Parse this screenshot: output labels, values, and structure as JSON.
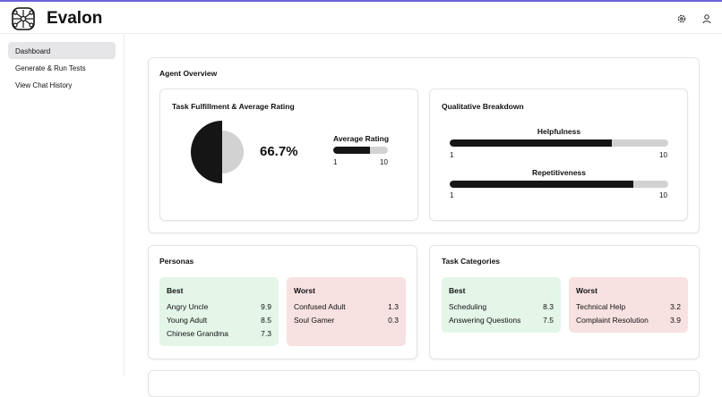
{
  "app": {
    "name": "Evalon",
    "icons": [
      "gear-icon",
      "user-icon"
    ]
  },
  "sidebar": {
    "items": [
      {
        "label": "Dashboard",
        "active": true
      },
      {
        "label": "Generate & Run Tests"
      },
      {
        "label": "View Chat History"
      }
    ]
  },
  "overview": {
    "title": "Agent Overview",
    "task": {
      "title": "Task Fulfillment & Average Rating",
      "percent": "66.7%",
      "rating_label": "Average Rating",
      "rating_fraction": 0.68,
      "min": "1",
      "max": "10"
    },
    "qual": {
      "title": "Qualitative Breakdown",
      "items": [
        {
          "label": "Helpfulness",
          "fraction": 0.74,
          "min": "1",
          "max": "10"
        },
        {
          "label": "Repetitiveness",
          "fraction": 0.84,
          "min": "1",
          "max": "10"
        }
      ]
    }
  },
  "personas": {
    "title": "Personas",
    "best_label": "Best",
    "worst_label": "Worst",
    "best": [
      {
        "name": "Angry Uncle",
        "score": "9.9"
      },
      {
        "name": "Young Adult",
        "score": "8.5"
      },
      {
        "name": "Chinese Grandma",
        "score": "7.3"
      }
    ],
    "worst": [
      {
        "name": "Confused Adult",
        "score": "1.3"
      },
      {
        "name": "Soul Gamer",
        "score": "0.3"
      }
    ]
  },
  "categories": {
    "title": "Task Categories",
    "best_label": "Best",
    "worst_label": "Worst",
    "best": [
      {
        "name": "Scheduling",
        "score": "8.3"
      },
      {
        "name": "Answering Questions",
        "score": "7.5"
      }
    ],
    "worst": [
      {
        "name": "Technical Help",
        "score": "3.2"
      },
      {
        "name": "Complaint Resolution",
        "score": "3.9"
      }
    ]
  },
  "colors": {
    "accent": "#6b62d9",
    "best_bg": "#e3f6e8",
    "worst_bg": "#f8e1e1",
    "bar_fill": "#151515",
    "bar_track": "#d2d2d2"
  }
}
